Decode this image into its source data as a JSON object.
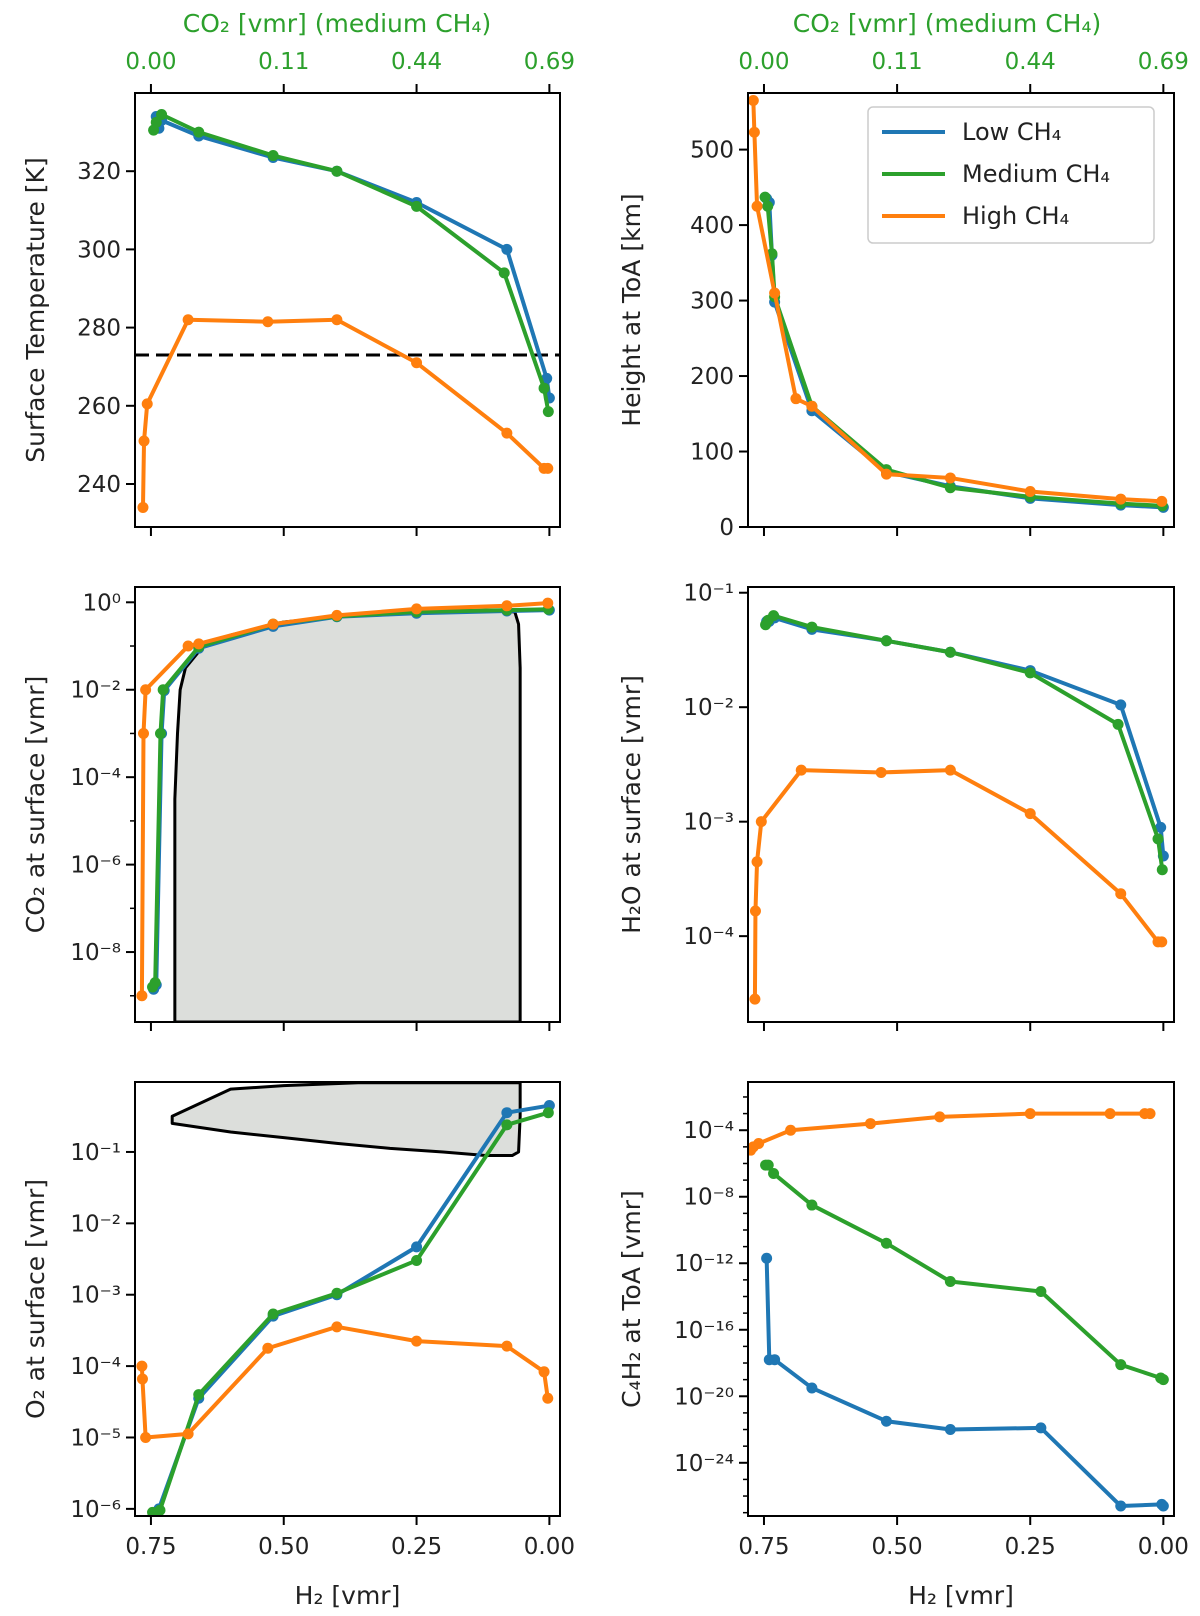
{
  "colors": {
    "low": "#1f77b4",
    "medium": "#2ca02c",
    "high": "#ff7f0e",
    "region_fill": "#dcdedb",
    "ref_line": "#000000"
  },
  "top_axis": {
    "label": "CO₂ [vmr] (medium CH₄)",
    "ticks": [
      {
        "h2": 0.75,
        "label": "0.00"
      },
      {
        "h2": 0.5,
        "label": "0.11"
      },
      {
        "h2": 0.25,
        "label": "0.44"
      },
      {
        "h2": 0.0,
        "label": "0.69"
      }
    ]
  },
  "legend": [
    {
      "key": "low",
      "label": "Low CH₄"
    },
    {
      "key": "medium",
      "label": "Medium CH₄"
    },
    {
      "key": "high",
      "label": "High CH₄"
    }
  ],
  "chart_data": [
    {
      "id": "surface-temperature",
      "type": "line",
      "xlabel": "H₂ [vmr]",
      "ylabel": "Surface Temperature [K]",
      "xlim": [
        0.78,
        -0.02
      ],
      "ylim": [
        229,
        340
      ],
      "yscale": "linear",
      "xticks": [
        {
          "v": 0.75,
          "label": "0.75"
        },
        {
          "v": 0.5,
          "label": "0.50"
        },
        {
          "v": 0.25,
          "label": "0.25"
        },
        {
          "v": 0.0,
          "label": "0.00"
        }
      ],
      "yticks": [
        {
          "v": 240,
          "label": "240"
        },
        {
          "v": 260,
          "label": "260"
        },
        {
          "v": 280,
          "label": "280"
        },
        {
          "v": 300,
          "label": "300"
        },
        {
          "v": 320,
          "label": "320"
        }
      ],
      "hline": 273,
      "series": [
        {
          "key": "low",
          "name": "Low CH₄",
          "x": [
            0.735,
            0.74,
            0.73,
            0.66,
            0.52,
            0.4,
            0.25,
            0.08,
            0.005,
            0.0
          ],
          "y": [
            331,
            334,
            333,
            329,
            323.5,
            320,
            312,
            300,
            267,
            262
          ]
        },
        {
          "key": "medium",
          "name": "Medium CH₄",
          "x": [
            0.745,
            0.74,
            0.73,
            0.66,
            0.52,
            0.4,
            0.25,
            0.085,
            0.01,
            0.002
          ],
          "y": [
            330.5,
            332.5,
            334.5,
            330,
            324,
            320,
            311,
            294,
            264.5,
            258.5
          ]
        },
        {
          "key": "high",
          "name": "High CH₄",
          "x": [
            0.765,
            0.763,
            0.757,
            0.68,
            0.53,
            0.4,
            0.25,
            0.08,
            0.01,
            0.003
          ],
          "y": [
            234,
            251,
            260.5,
            282,
            281.5,
            282,
            271,
            253,
            244,
            244
          ]
        }
      ]
    },
    {
      "id": "height-toa",
      "type": "line",
      "xlabel": "H₂ [vmr]",
      "ylabel": "Height at ToA [km]",
      "xlim": [
        0.78,
        -0.02
      ],
      "ylim": [
        0,
        575
      ],
      "yscale": "linear",
      "xticks": [
        {
          "v": 0.75,
          "label": "0.75"
        },
        {
          "v": 0.5,
          "label": "0.50"
        },
        {
          "v": 0.25,
          "label": "0.25"
        },
        {
          "v": 0.0,
          "label": "0.00"
        }
      ],
      "yticks": [
        {
          "v": 0,
          "label": "0"
        },
        {
          "v": 100,
          "label": "100"
        },
        {
          "v": 200,
          "label": "200"
        },
        {
          "v": 300,
          "label": "300"
        },
        {
          "v": 400,
          "label": "400"
        },
        {
          "v": 500,
          "label": "500"
        }
      ],
      "series": [
        {
          "key": "low",
          "name": "Low CH₄",
          "x": [
            0.745,
            0.74,
            0.735,
            0.73,
            0.66,
            0.52,
            0.4,
            0.25,
            0.08,
            0.0
          ],
          "y": [
            435,
            430,
            360,
            298,
            154,
            73,
            54,
            38,
            29,
            26
          ]
        },
        {
          "key": "medium",
          "name": "Medium CH₄",
          "x": [
            0.748,
            0.743,
            0.735,
            0.73,
            0.66,
            0.52,
            0.4,
            0.25,
            0.08,
            0.002
          ],
          "y": [
            437,
            425,
            362,
            305,
            160,
            76,
            52,
            40,
            31,
            28
          ]
        },
        {
          "key": "high",
          "name": "High CH₄",
          "x": [
            0.77,
            0.768,
            0.763,
            0.73,
            0.69,
            0.66,
            0.52,
            0.4,
            0.25,
            0.08,
            0.003
          ],
          "y": [
            565,
            523,
            425,
            310,
            170,
            160,
            70,
            65,
            47,
            37,
            34
          ]
        }
      ]
    },
    {
      "id": "co2-surface",
      "type": "line",
      "xlabel": "H₂ [vmr]",
      "ylabel": "CO₂ at surface [vmr]",
      "xlim": [
        0.78,
        -0.02
      ],
      "ylim": [
        -9.6,
        0.35
      ],
      "yscale": "log",
      "xticks": [
        {
          "v": 0.75,
          "label": "0.75"
        },
        {
          "v": 0.5,
          "label": "0.50"
        },
        {
          "v": 0.25,
          "label": "0.25"
        },
        {
          "v": 0.0,
          "label": "0.00"
        }
      ],
      "yticks": [
        {
          "v": 0,
          "label": "10⁰"
        },
        {
          "v": -2,
          "label": "10⁻²"
        },
        {
          "v": -4,
          "label": "10⁻⁴"
        },
        {
          "v": -6,
          "label": "10⁻⁶"
        },
        {
          "v": -8,
          "label": "10⁻⁸"
        }
      ],
      "region": {
        "x": [
          0.705,
          0.705,
          0.7,
          0.695,
          0.685,
          0.65,
          0.6,
          0.5,
          0.4,
          0.3,
          0.2,
          0.1,
          0.065,
          0.058,
          0.055,
          0.055
        ],
        "y": [
          -9.6,
          -4.5,
          -3,
          -2,
          -1.5,
          -0.98,
          -0.75,
          -0.45,
          -0.33,
          -0.28,
          -0.22,
          -0.2,
          -0.22,
          -0.5,
          -1.5,
          -9.6
        ]
      },
      "series": [
        {
          "key": "low",
          "name": "Low CH₄",
          "x": [
            0.745,
            0.74,
            0.73,
            0.725,
            0.66,
            0.52,
            0.4,
            0.25,
            0.08,
            0.0
          ],
          "y": [
            -8.85,
            -8.75,
            -3,
            -2.02,
            -1.05,
            -0.55,
            -0.33,
            -0.25,
            -0.2,
            -0.18
          ]
        },
        {
          "key": "medium",
          "name": "Medium CH₄",
          "x": [
            0.747,
            0.742,
            0.732,
            0.727,
            0.66,
            0.52,
            0.4,
            0.25,
            0.08,
            0.002
          ],
          "y": [
            -8.8,
            -8.7,
            -3,
            -2,
            -1.02,
            -0.5,
            -0.32,
            -0.22,
            -0.18,
            -0.16
          ]
        },
        {
          "key": "high",
          "name": "High CH₄",
          "x": [
            0.767,
            0.764,
            0.76,
            0.68,
            0.66,
            0.52,
            0.4,
            0.25,
            0.08,
            0.003
          ],
          "y": [
            -9,
            -3,
            -2,
            -1,
            -0.95,
            -0.5,
            -0.3,
            -0.15,
            -0.08,
            -0.02
          ]
        }
      ]
    },
    {
      "id": "h2o-surface",
      "type": "line",
      "xlabel": "H₂ [vmr]",
      "ylabel": "H₂O at surface [vmr]",
      "xlim": [
        0.78,
        -0.02
      ],
      "ylim": [
        -4.75,
        -0.95
      ],
      "yscale": "log",
      "xticks": [
        {
          "v": 0.75,
          "label": "0.75"
        },
        {
          "v": 0.5,
          "label": "0.50"
        },
        {
          "v": 0.25,
          "label": "0.25"
        },
        {
          "v": 0.0,
          "label": "0.00"
        }
      ],
      "yticks": [
        {
          "v": -1,
          "label": "10⁻¹"
        },
        {
          "v": -2,
          "label": "10⁻²"
        },
        {
          "v": -3,
          "label": "10⁻³"
        },
        {
          "v": -4,
          "label": "10⁻⁴"
        }
      ],
      "series": [
        {
          "key": "low",
          "name": "Low CH₄",
          "x": [
            0.745,
            0.74,
            0.73,
            0.66,
            0.52,
            0.4,
            0.25,
            0.08,
            0.005,
            0.0
          ],
          "y": [
            -1.25,
            -1.25,
            -1.22,
            -1.32,
            -1.42,
            -1.52,
            -1.68,
            -1.98,
            -3.05,
            -3.3
          ]
        },
        {
          "key": "medium",
          "name": "Medium CH₄",
          "x": [
            0.747,
            0.742,
            0.732,
            0.66,
            0.52,
            0.4,
            0.25,
            0.085,
            0.01,
            0.002
          ],
          "y": [
            -1.28,
            -1.24,
            -1.2,
            -1.3,
            -1.42,
            -1.52,
            -1.7,
            -2.15,
            -3.15,
            -3.42
          ]
        },
        {
          "key": "high",
          "name": "High CH₄",
          "x": [
            0.767,
            0.766,
            0.763,
            0.755,
            0.68,
            0.53,
            0.4,
            0.25,
            0.08,
            0.01,
            0.003
          ],
          "y": [
            -4.55,
            -3.78,
            -3.35,
            -3.0,
            -2.55,
            -2.57,
            -2.55,
            -2.93,
            -3.63,
            -4.05,
            -4.05
          ]
        }
      ]
    },
    {
      "id": "o2-surface",
      "type": "line",
      "xlabel": "H₂ [vmr]",
      "ylabel": "O₂ at surface [vmr]",
      "xlim": [
        0.78,
        -0.02
      ],
      "ylim": [
        -6.1,
        -0.02
      ],
      "yscale": "log",
      "xticks": [
        {
          "v": 0.75,
          "label": "0.75"
        },
        {
          "v": 0.5,
          "label": "0.50"
        },
        {
          "v": 0.25,
          "label": "0.25"
        },
        {
          "v": 0.0,
          "label": "0.00"
        }
      ],
      "yticks": [
        {
          "v": -1,
          "label": "10⁻¹"
        },
        {
          "v": -2,
          "label": "10⁻²"
        },
        {
          "v": -3,
          "label": "10⁻³"
        },
        {
          "v": -4,
          "label": "10⁻⁴"
        },
        {
          "v": -5,
          "label": "10⁻⁵"
        },
        {
          "v": -6,
          "label": "10⁻⁶"
        }
      ],
      "region": {
        "x": [
          0.36,
          0.5,
          0.6,
          0.71,
          0.71,
          0.6,
          0.5,
          0.4,
          0.3,
          0.2,
          0.12,
          0.07,
          0.058,
          0.055,
          0.055
        ],
        "y": [
          -0.03,
          -0.07,
          -0.12,
          -0.5,
          -0.6,
          -0.72,
          -0.8,
          -0.88,
          -0.95,
          -1.0,
          -1.05,
          -1.05,
          -1.0,
          -0.5,
          -0.03
        ]
      },
      "series": [
        {
          "key": "low",
          "name": "Low CH₄",
          "x": [
            0.745,
            0.735,
            0.66,
            0.52,
            0.4,
            0.25,
            0.08,
            0.0
          ],
          "y": [
            -6.1,
            -6.0,
            -4.45,
            -3.3,
            -3.0,
            -2.33,
            -0.45,
            -0.35
          ]
        },
        {
          "key": "medium",
          "name": "Medium CH₄",
          "x": [
            0.747,
            0.733,
            0.66,
            0.52,
            0.4,
            0.25,
            0.08,
            0.002
          ],
          "y": [
            -6.05,
            -6.02,
            -4.4,
            -3.27,
            -2.98,
            -2.52,
            -0.62,
            -0.45
          ]
        },
        {
          "key": "high",
          "name": "High CH₄",
          "x": [
            0.767,
            0.766,
            0.76,
            0.68,
            0.53,
            0.4,
            0.25,
            0.08,
            0.01,
            0.003
          ],
          "y": [
            -4.0,
            -4.18,
            -5.0,
            -4.95,
            -3.75,
            -3.45,
            -3.65,
            -3.72,
            -4.08,
            -4.45
          ]
        }
      ]
    },
    {
      "id": "c4h2-toa",
      "type": "line",
      "xlabel": "H₂ [vmr]",
      "ylabel": "C₄H₂ at ToA [vmr]",
      "xlim": [
        0.78,
        -0.02
      ],
      "ylim": [
        -27.2,
        -1.1
      ],
      "yscale": "log",
      "xticks": [
        {
          "v": 0.75,
          "label": "0.75"
        },
        {
          "v": 0.5,
          "label": "0.50"
        },
        {
          "v": 0.25,
          "label": "0.25"
        },
        {
          "v": 0.0,
          "label": "0.00"
        }
      ],
      "yticks": [
        {
          "v": -4,
          "label": "10⁻⁴"
        },
        {
          "v": -8,
          "label": "10⁻⁸"
        },
        {
          "v": -12,
          "label": "10⁻¹²"
        },
        {
          "v": -16,
          "label": "10⁻¹⁶"
        },
        {
          "v": -20,
          "label": "10⁻²⁰"
        },
        {
          "v": -24,
          "label": "10⁻²⁴"
        }
      ],
      "series": [
        {
          "key": "low",
          "name": "Low CH₄",
          "x": [
            0.745,
            0.74,
            0.73,
            0.66,
            0.52,
            0.4,
            0.23,
            0.08,
            0.003,
            0.0
          ],
          "y": [
            -11.7,
            -17.8,
            -17.8,
            -19.5,
            -21.5,
            -22.0,
            -21.9,
            -26.6,
            -26.5,
            -26.6
          ]
        },
        {
          "key": "medium",
          "name": "Medium CH₄",
          "x": [
            0.747,
            0.742,
            0.732,
            0.66,
            0.52,
            0.4,
            0.23,
            0.08,
            0.005,
            0.0
          ],
          "y": [
            -6.1,
            -6.1,
            -6.6,
            -8.5,
            -10.8,
            -13.1,
            -13.7,
            -18.1,
            -18.9,
            -19.0
          ]
        },
        {
          "key": "high",
          "name": "High CH₄",
          "x": [
            0.775,
            0.77,
            0.76,
            0.7,
            0.55,
            0.42,
            0.25,
            0.1,
            0.035,
            0.025
          ],
          "y": [
            -5.2,
            -5.0,
            -4.8,
            -4.0,
            -3.6,
            -3.2,
            -3.0,
            -3.0,
            -3.0,
            -3.0
          ]
        }
      ]
    }
  ]
}
